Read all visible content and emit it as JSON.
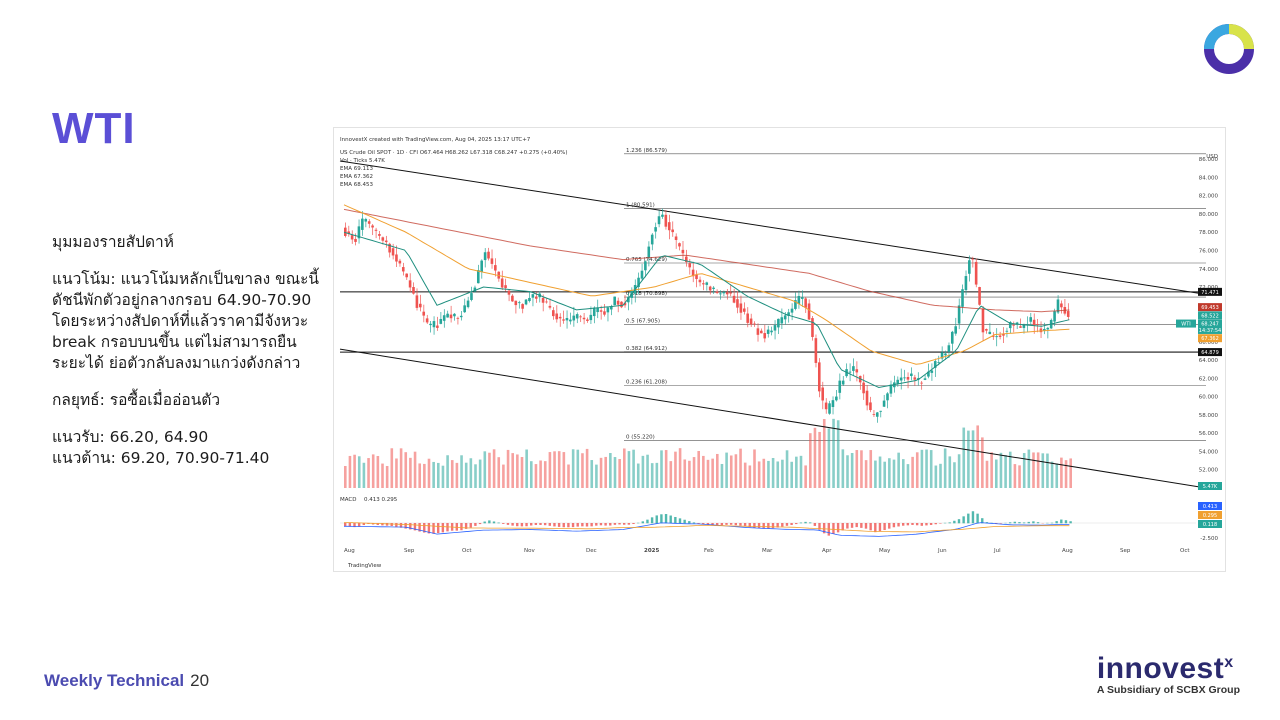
{
  "slide": {
    "title": "WTI",
    "analysis": {
      "heading": "มุมมองรายสัปดาห์",
      "trend": "แนวโน้ม: แนวโน้มหลักเป็นขาลง ขณะนี้ดัชนีพักตัวอยู่กลางกรอบ 64.90-70.90 โดยระหว่างสัปดาห์ที่แล้วราคามีจังหวะ break กรอบบนขึ้น แต่ไม่สามารถยืนระยะได้ ย่อตัวกลับลงมาแกว่งดังกล่าว",
      "strategy": "กลยุทธ์: รอซื้อเมื่ออ่อนตัว",
      "support": "แนวรับ: 66.20, 64.90",
      "resistance": "แนวต้าน: 69.20, 70.90-71.40"
    },
    "footer": {
      "label": "Weekly Technical",
      "page": "20"
    },
    "brand": {
      "name": "innovest",
      "mark": "x",
      "subtitle": "A Subsidiary of SCBX Group"
    },
    "colors": {
      "accent": "#5b4fd6",
      "brand_navy": "#2b2a6e"
    }
  },
  "chart_data": {
    "type": "candlestick",
    "header": {
      "created": "InnovestX created with TradingView.com, Aug 04, 2025 13:17 UTC+7",
      "symbol_line": "US Crude Oil SPOT · 1D · CFI  O67.464  H68.262  L67.318  C68.247  +0.275 (+0.40%)",
      "vol": "Vol · Ticks  5.47K",
      "ema1": "EMA  69.113",
      "ema2": "EMA  67.362",
      "ema3": "EMA  68.453"
    },
    "currency": "USD",
    "watermark": "TradingView",
    "y_ticks": [
      86,
      84,
      82,
      80,
      78,
      76,
      74,
      72,
      70,
      68,
      66,
      64,
      62,
      60,
      58,
      56,
      54,
      52
    ],
    "y_tick_labels": [
      "86.000",
      "84.000",
      "82.000",
      "80.000",
      "78.000",
      "76.000",
      "74.000",
      "72.000",
      "70.000",
      "68.000",
      "66.000",
      "64.000",
      "62.000",
      "60.000",
      "58.000",
      "56.000",
      "54.000",
      "52.000"
    ],
    "ylim": [
      50.0,
      87.0
    ],
    "x_labels": [
      "Aug",
      "Sep",
      "Oct",
      "Nov",
      "Dec",
      "2025",
      "Feb",
      "Mar",
      "Apr",
      "May",
      "Jun",
      "Jul",
      "Aug",
      "Sep",
      "Oct"
    ],
    "fib_levels": [
      {
        "label": "1.236 (86.579)",
        "value": 86.579
      },
      {
        "label": "1 (80.591)",
        "value": 80.591
      },
      {
        "label": "0.765 (74.629)",
        "value": 74.629
      },
      {
        "label": "0.618 (70.898)",
        "value": 70.898
      },
      {
        "label": "0.5 (67.905)",
        "value": 67.905
      },
      {
        "label": "0.382 (64.912)",
        "value": 64.912
      },
      {
        "label": "0.236 (61.208)",
        "value": 61.208
      },
      {
        "label": "0 (55.220)",
        "value": 55.22
      }
    ],
    "horizontal_lines": [
      {
        "label": "71.471",
        "value": 71.471,
        "color": "#111111"
      },
      {
        "label": "64.879",
        "value": 64.879,
        "color": "#111111"
      }
    ],
    "price_tags": [
      {
        "label": "71.471",
        "value": 71.471,
        "color": "#111111"
      },
      {
        "label": "69.453",
        "value": 69.8,
        "color": "#c0392b"
      },
      {
        "label": "68.522",
        "value": 68.9,
        "color": "#26a69a"
      },
      {
        "label": "68.247",
        "value": 68.0,
        "color": "#26a69a",
        "prefix": "WTI"
      },
      {
        "label": "14:37:54",
        "value": 67.3,
        "color": "#26a69a"
      },
      {
        "label": "67.362",
        "value": 66.4,
        "color": "#f0a030"
      },
      {
        "label": "64.879",
        "value": 64.879,
        "color": "#111111"
      }
    ],
    "volume_tag": "5.47K",
    "macd": {
      "label": "MACD",
      "values_text": "0.413  0.295",
      "tags": [
        {
          "label": "0.413",
          "color": "#2962ff"
        },
        {
          "label": "0.295",
          "color": "#f0a030"
        },
        {
          "label": "0.118",
          "color": "#26a69a"
        }
      ],
      "axis_label": "-2.500"
    },
    "price_series": [
      {
        "x": 0,
        "v": 78.5
      },
      {
        "x": 8,
        "v": 77
      },
      {
        "x": 14,
        "v": 79.5
      },
      {
        "x": 22,
        "v": 77.8
      },
      {
        "x": 30,
        "v": 76.5
      },
      {
        "x": 38,
        "v": 74
      },
      {
        "x": 44,
        "v": 72
      },
      {
        "x": 50,
        "v": 69.5
      },
      {
        "x": 56,
        "v": 67.5
      },
      {
        "x": 62,
        "v": 68
      },
      {
        "x": 68,
        "v": 69
      },
      {
        "x": 74,
        "v": 68.5
      },
      {
        "x": 80,
        "v": 70
      },
      {
        "x": 86,
        "v": 72.5
      },
      {
        "x": 92,
        "v": 76
      },
      {
        "x": 98,
        "v": 74
      },
      {
        "x": 104,
        "v": 72
      },
      {
        "x": 110,
        "v": 70.5
      },
      {
        "x": 116,
        "v": 70
      },
      {
        "x": 122,
        "v": 71
      },
      {
        "x": 128,
        "v": 70.8
      },
      {
        "x": 134,
        "v": 69.5
      },
      {
        "x": 140,
        "v": 68.5
      },
      {
        "x": 146,
        "v": 68.2
      },
      {
        "x": 152,
        "v": 68.8
      },
      {
        "x": 158,
        "v": 68.3
      },
      {
        "x": 164,
        "v": 69.5
      },
      {
        "x": 170,
        "v": 69.2
      },
      {
        "x": 176,
        "v": 70.5
      },
      {
        "x": 182,
        "v": 70.2
      },
      {
        "x": 188,
        "v": 71.5
      },
      {
        "x": 194,
        "v": 74
      },
      {
        "x": 200,
        "v": 78
      },
      {
        "x": 206,
        "v": 80.2
      },
      {
        "x": 212,
        "v": 78
      },
      {
        "x": 218,
        "v": 76
      },
      {
        "x": 224,
        "v": 74
      },
      {
        "x": 230,
        "v": 72.5
      },
      {
        "x": 236,
        "v": 72
      },
      {
        "x": 242,
        "v": 71.2
      },
      {
        "x": 248,
        "v": 71.5
      },
      {
        "x": 254,
        "v": 70.5
      },
      {
        "x": 260,
        "v": 69
      },
      {
        "x": 266,
        "v": 67.5
      },
      {
        "x": 272,
        "v": 66.8
      },
      {
        "x": 278,
        "v": 67.3
      },
      {
        "x": 284,
        "v": 68.5
      },
      {
        "x": 290,
        "v": 69.5
      },
      {
        "x": 296,
        "v": 71
      },
      {
        "x": 300,
        "v": 70
      },
      {
        "x": 304,
        "v": 66
      },
      {
        "x": 308,
        "v": 61
      },
      {
        "x": 312,
        "v": 58
      },
      {
        "x": 318,
        "v": 60
      },
      {
        "x": 324,
        "v": 62.5
      },
      {
        "x": 330,
        "v": 63
      },
      {
        "x": 336,
        "v": 61
      },
      {
        "x": 342,
        "v": 57.5
      },
      {
        "x": 348,
        "v": 59
      },
      {
        "x": 354,
        "v": 61
      },
      {
        "x": 360,
        "v": 62
      },
      {
        "x": 366,
        "v": 62.3
      },
      {
        "x": 372,
        "v": 61.5
      },
      {
        "x": 378,
        "v": 62.5
      },
      {
        "x": 384,
        "v": 64
      },
      {
        "x": 390,
        "v": 65
      },
      {
        "x": 396,
        "v": 68
      },
      {
        "x": 402,
        "v": 73
      },
      {
        "x": 406,
        "v": 76
      },
      {
        "x": 410,
        "v": 71
      },
      {
        "x": 414,
        "v": 67
      },
      {
        "x": 420,
        "v": 66.5
      },
      {
        "x": 426,
        "v": 67
      },
      {
        "x": 432,
        "v": 68
      },
      {
        "x": 438,
        "v": 67.5
      },
      {
        "x": 444,
        "v": 68.5
      },
      {
        "x": 450,
        "v": 67.2
      },
      {
        "x": 456,
        "v": 67.5
      },
      {
        "x": 462,
        "v": 70.2
      },
      {
        "x": 466,
        "v": 69.5
      },
      {
        "x": 470,
        "v": 68.2
      }
    ],
    "ema_short": [
      {
        "x": 0,
        "v": 78
      },
      {
        "x": 40,
        "v": 76
      },
      {
        "x": 60,
        "v": 70
      },
      {
        "x": 90,
        "v": 72
      },
      {
        "x": 120,
        "v": 71.5
      },
      {
        "x": 150,
        "v": 69.5
      },
      {
        "x": 180,
        "v": 70
      },
      {
        "x": 205,
        "v": 75.5
      },
      {
        "x": 230,
        "v": 74.5
      },
      {
        "x": 260,
        "v": 71
      },
      {
        "x": 285,
        "v": 69
      },
      {
        "x": 305,
        "v": 68
      },
      {
        "x": 320,
        "v": 63
      },
      {
        "x": 345,
        "v": 61
      },
      {
        "x": 370,
        "v": 61.8
      },
      {
        "x": 395,
        "v": 65
      },
      {
        "x": 410,
        "v": 70
      },
      {
        "x": 430,
        "v": 68
      },
      {
        "x": 450,
        "v": 67.7
      },
      {
        "x": 470,
        "v": 68.5
      }
    ],
    "ema_mid": [
      {
        "x": 0,
        "v": 81
      },
      {
        "x": 40,
        "v": 78
      },
      {
        "x": 80,
        "v": 74
      },
      {
        "x": 120,
        "v": 72.5
      },
      {
        "x": 160,
        "v": 71
      },
      {
        "x": 200,
        "v": 72
      },
      {
        "x": 230,
        "v": 73.5
      },
      {
        "x": 260,
        "v": 72
      },
      {
        "x": 290,
        "v": 70.5
      },
      {
        "x": 310,
        "v": 68.5
      },
      {
        "x": 340,
        "v": 65
      },
      {
        "x": 370,
        "v": 63.5
      },
      {
        "x": 400,
        "v": 65
      },
      {
        "x": 420,
        "v": 66.8
      },
      {
        "x": 450,
        "v": 67.2
      },
      {
        "x": 470,
        "v": 67.4
      }
    ],
    "ema_long": [
      {
        "x": 0,
        "v": 80.5
      },
      {
        "x": 60,
        "v": 78.5
      },
      {
        "x": 120,
        "v": 76.5
      },
      {
        "x": 180,
        "v": 75
      },
      {
        "x": 220,
        "v": 75.5
      },
      {
        "x": 260,
        "v": 74.5
      },
      {
        "x": 300,
        "v": 73.5
      },
      {
        "x": 340,
        "v": 71.5
      },
      {
        "x": 380,
        "v": 70
      },
      {
        "x": 420,
        "v": 69.5
      },
      {
        "x": 450,
        "v": 69.3
      },
      {
        "x": 470,
        "v": 69.5
      }
    ]
  }
}
